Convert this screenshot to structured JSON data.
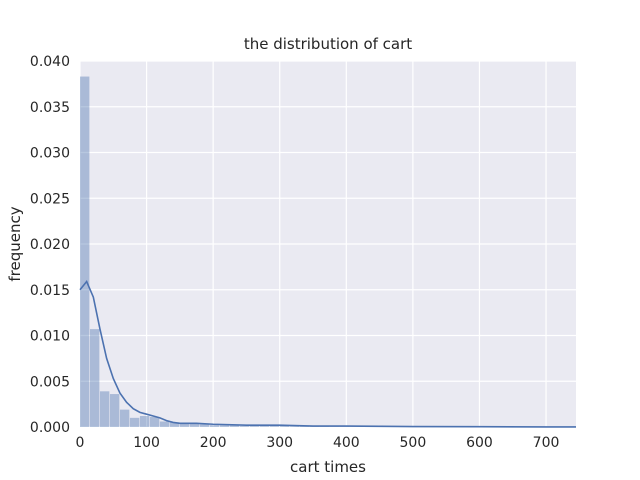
{
  "chart_data": {
    "type": "bar",
    "title": "the distribution of cart",
    "xlabel": "cart times",
    "ylabel": "frequency",
    "xlim": [
      0,
      745
    ],
    "ylim": [
      0,
      0.04
    ],
    "xticks": [
      "0",
      "100",
      "200",
      "300",
      "400",
      "500",
      "600",
      "700"
    ],
    "yticks": [
      "0.000",
      "0.005",
      "0.010",
      "0.015",
      "0.020",
      "0.025",
      "0.030",
      "0.035",
      "0.040"
    ],
    "grid": true,
    "colors": {
      "background": "#EAEAF2",
      "grid": "#FFFFFF",
      "bars": "#4C72B0",
      "line": "#4C72B0"
    },
    "bins": {
      "width": 15,
      "values": [
        0.0383,
        0.0107,
        0.0039,
        0.0036,
        0.0019,
        0.001,
        0.0012,
        0.0011,
        0.0006,
        0.0005,
        0.0004,
        0.0004,
        0.0003,
        0.0002,
        0.0002,
        0.0002,
        0.0001,
        0.0001,
        0.0001,
        0.0001,
        0.0001,
        5e-05,
        5e-05,
        5e-05,
        5e-05,
        4e-05,
        4e-05,
        3e-05,
        3e-05,
        2e-05
      ]
    },
    "kde": {
      "x": [
        0,
        10,
        20,
        30,
        40,
        50,
        60,
        70,
        80,
        90,
        100,
        110,
        120,
        130,
        140,
        150,
        175,
        200,
        250,
        300,
        350,
        400,
        450,
        500,
        600,
        700,
        745
      ],
      "y": [
        0.015,
        0.0159,
        0.0142,
        0.0107,
        0.0075,
        0.0053,
        0.0037,
        0.0027,
        0.002,
        0.0016,
        0.0014,
        0.0012,
        0.001,
        0.0007,
        0.0005,
        0.0004,
        0.0004,
        0.0003,
        0.0002,
        0.0002,
        0.0001,
        0.0001,
        8e-05,
        5e-05,
        3e-05,
        1e-05,
        1e-05
      ]
    }
  }
}
